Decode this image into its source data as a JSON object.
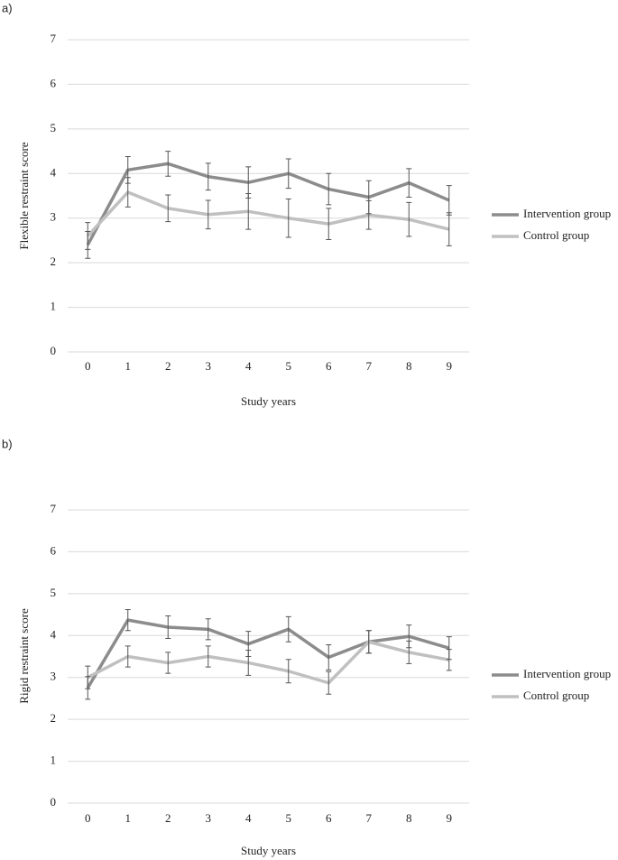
{
  "chart_data": [
    {
      "type": "line",
      "panel_label": "a)",
      "y_label": "Flexible restraint score",
      "x_label": "Study years",
      "categories": [
        "0",
        "1",
        "2",
        "3",
        "4",
        "5",
        "6",
        "7",
        "8",
        "9"
      ],
      "ylim": [
        0,
        7
      ],
      "yticks": [
        0,
        1,
        2,
        3,
        4,
        5,
        6,
        7
      ],
      "grid": true,
      "legend": "right",
      "series": [
        {
          "name": "Intervention group",
          "color": "#8c8c8c",
          "values": [
            2.4,
            4.08,
            4.22,
            3.93,
            3.8,
            4.0,
            3.65,
            3.47,
            3.79,
            3.4
          ],
          "errors": [
            0.3,
            0.3,
            0.28,
            0.3,
            0.35,
            0.33,
            0.35,
            0.37,
            0.32,
            0.33
          ]
        },
        {
          "name": "Control group",
          "color": "#c0c0c0",
          "values": [
            2.6,
            3.58,
            3.22,
            3.08,
            3.15,
            3.0,
            2.87,
            3.07,
            2.97,
            2.75
          ],
          "errors": [
            0.3,
            0.33,
            0.3,
            0.32,
            0.4,
            0.43,
            0.35,
            0.32,
            0.38,
            0.37
          ]
        }
      ]
    },
    {
      "type": "line",
      "panel_label": "b)",
      "y_label": "Rigid restraint score",
      "x_label": "Study years",
      "categories": [
        "0",
        "1",
        "2",
        "3",
        "4",
        "5",
        "6",
        "7",
        "8",
        "9"
      ],
      "ylim": [
        0,
        7
      ],
      "yticks": [
        0,
        1,
        2,
        3,
        4,
        5,
        6,
        7
      ],
      "grid": true,
      "legend": "right",
      "series": [
        {
          "name": "Intervention group",
          "color": "#8c8c8c",
          "values": [
            2.75,
            4.37,
            4.2,
            4.15,
            3.8,
            4.15,
            3.48,
            3.85,
            3.98,
            3.7
          ],
          "errors": [
            0.27,
            0.25,
            0.27,
            0.25,
            0.3,
            0.3,
            0.3,
            0.27,
            0.27,
            0.27
          ]
        },
        {
          "name": "Control group",
          "color": "#c0c0c0",
          "values": [
            3.0,
            3.5,
            3.35,
            3.5,
            3.35,
            3.15,
            2.87,
            3.85,
            3.6,
            3.42
          ],
          "errors": [
            0.27,
            0.25,
            0.25,
            0.25,
            0.3,
            0.28,
            0.27,
            0.27,
            0.27,
            0.25
          ]
        }
      ]
    }
  ]
}
